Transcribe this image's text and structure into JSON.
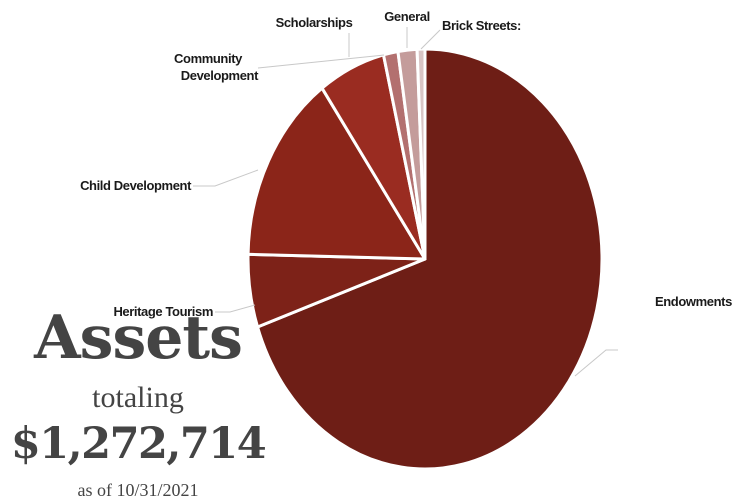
{
  "chart_data": {
    "type": "pie",
    "title": "",
    "slices": [
      {
        "label": "Endowments",
        "value": 68.5,
        "color": "#6e1e16"
      },
      {
        "label": "Heritage Tourism",
        "value": 5.5,
        "color": "#7d2218"
      },
      {
        "label": "Child Development",
        "value": 14.5,
        "color": "#8b2519"
      },
      {
        "label": "Community Development",
        "value": 0,
        "color": "#8b2519"
      },
      {
        "label": "Scholarships",
        "value": 6.0,
        "color": "#9a2c21"
      },
      {
        "label": "General",
        "value": 1.3,
        "color": "#b3706f"
      },
      {
        "label": "",
        "value": 1.7,
        "color": "#c49c9b"
      },
      {
        "label": "Brick Streets:",
        "value": 0.7,
        "color": "#d9c5c5"
      }
    ]
  },
  "caption": {
    "title": "Assets",
    "totaling": "totaling",
    "amount": "$1,272,714",
    "date": "as of 10/31/2021"
  }
}
